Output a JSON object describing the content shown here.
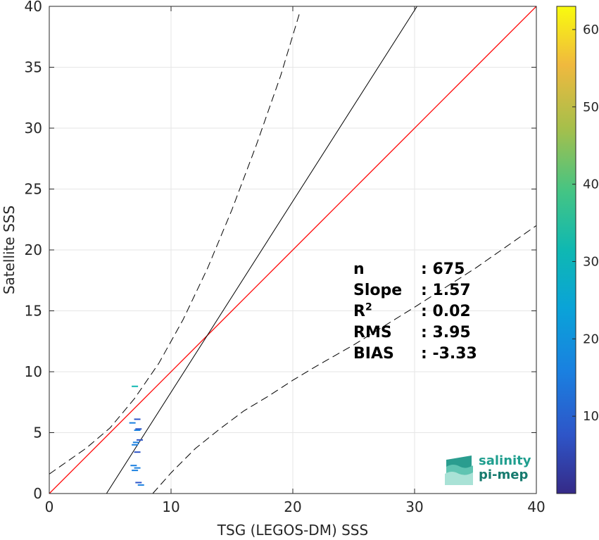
{
  "chart_data": {
    "type": "scatter",
    "xlabel": "TSG (LEGOS-DM) SSS",
    "ylabel": "Satellite SSS",
    "xlim": [
      0,
      40
    ],
    "ylim": [
      0,
      40
    ],
    "xticks": [
      "0",
      "10",
      "20",
      "30",
      "40"
    ],
    "yticks": [
      "0",
      "5",
      "10",
      "15",
      "20",
      "25",
      "30",
      "35",
      "40"
    ],
    "grid": true,
    "colorbar": {
      "min": 0,
      "max": 63,
      "ticks": [
        "10",
        "20",
        "30",
        "40",
        "50",
        "60"
      ],
      "colormap": "parula"
    },
    "lines": [
      {
        "name": "1:1",
        "color": "#ff0000",
        "style": "solid",
        "points": [
          [
            0,
            0
          ],
          [
            40,
            40
          ]
        ]
      },
      {
        "name": "fit",
        "color": "#000000",
        "style": "solid",
        "points": [
          [
            4.7,
            0
          ],
          [
            30.2,
            40
          ]
        ]
      },
      {
        "name": "upper-band",
        "color": "#000000",
        "style": "dashed",
        "points": [
          [
            0,
            1.6
          ],
          [
            3,
            3.7
          ],
          [
            5,
            5.4
          ],
          [
            7,
            7.8
          ],
          [
            9,
            10.7
          ],
          [
            11,
            14.3
          ],
          [
            13,
            18.5
          ],
          [
            15,
            23.3
          ],
          [
            17,
            28.6
          ],
          [
            19,
            34.3
          ],
          [
            20.6,
            39.6
          ]
        ]
      },
      {
        "name": "lower-band",
        "color": "#000000",
        "style": "dashed",
        "points": [
          [
            8.5,
            0
          ],
          [
            10,
            1.7
          ],
          [
            12,
            3.7
          ],
          [
            14,
            5.3
          ],
          [
            16,
            6.8
          ],
          [
            18,
            8.0
          ],
          [
            20,
            9.3
          ],
          [
            22,
            10.5
          ],
          [
            25,
            12.2
          ],
          [
            30,
            15.3
          ],
          [
            35,
            18.5
          ],
          [
            40,
            22.0
          ]
        ]
      }
    ],
    "points": [
      {
        "x": 7.0,
        "y": 8.8,
        "c": 35
      },
      {
        "x": 7.2,
        "y": 6.1,
        "c": 5
      },
      {
        "x": 6.8,
        "y": 5.8,
        "c": 12
      },
      {
        "x": 7.3,
        "y": 5.3,
        "c": 8
      },
      {
        "x": 7.2,
        "y": 5.2,
        "c": 12
      },
      {
        "x": 7.4,
        "y": 4.4,
        "c": 10
      },
      {
        "x": 7.1,
        "y": 4.2,
        "c": 14
      },
      {
        "x": 7.0,
        "y": 4.0,
        "c": 18
      },
      {
        "x": 7.2,
        "y": 3.4,
        "c": 8
      },
      {
        "x": 6.9,
        "y": 2.3,
        "c": 14
      },
      {
        "x": 7.2,
        "y": 2.1,
        "c": 12
      },
      {
        "x": 7.0,
        "y": 1.9,
        "c": 18
      },
      {
        "x": 7.3,
        "y": 0.9,
        "c": 10
      },
      {
        "x": 7.5,
        "y": 0.7,
        "c": 14
      }
    ]
  },
  "stats": {
    "n_label": "n",
    "n_value": ": 675",
    "slope_label": "Slope",
    "slope_value": ": 1.57",
    "r2_label": "R",
    "r2_sup": "2",
    "r2_value": ": 0.02",
    "rms_label": "RMS",
    "rms_value": ": 3.95",
    "bias_label": "BIAS",
    "bias_value": ": -3.33"
  },
  "logo": {
    "line1": "salinity",
    "line2": "pi-mep"
  }
}
